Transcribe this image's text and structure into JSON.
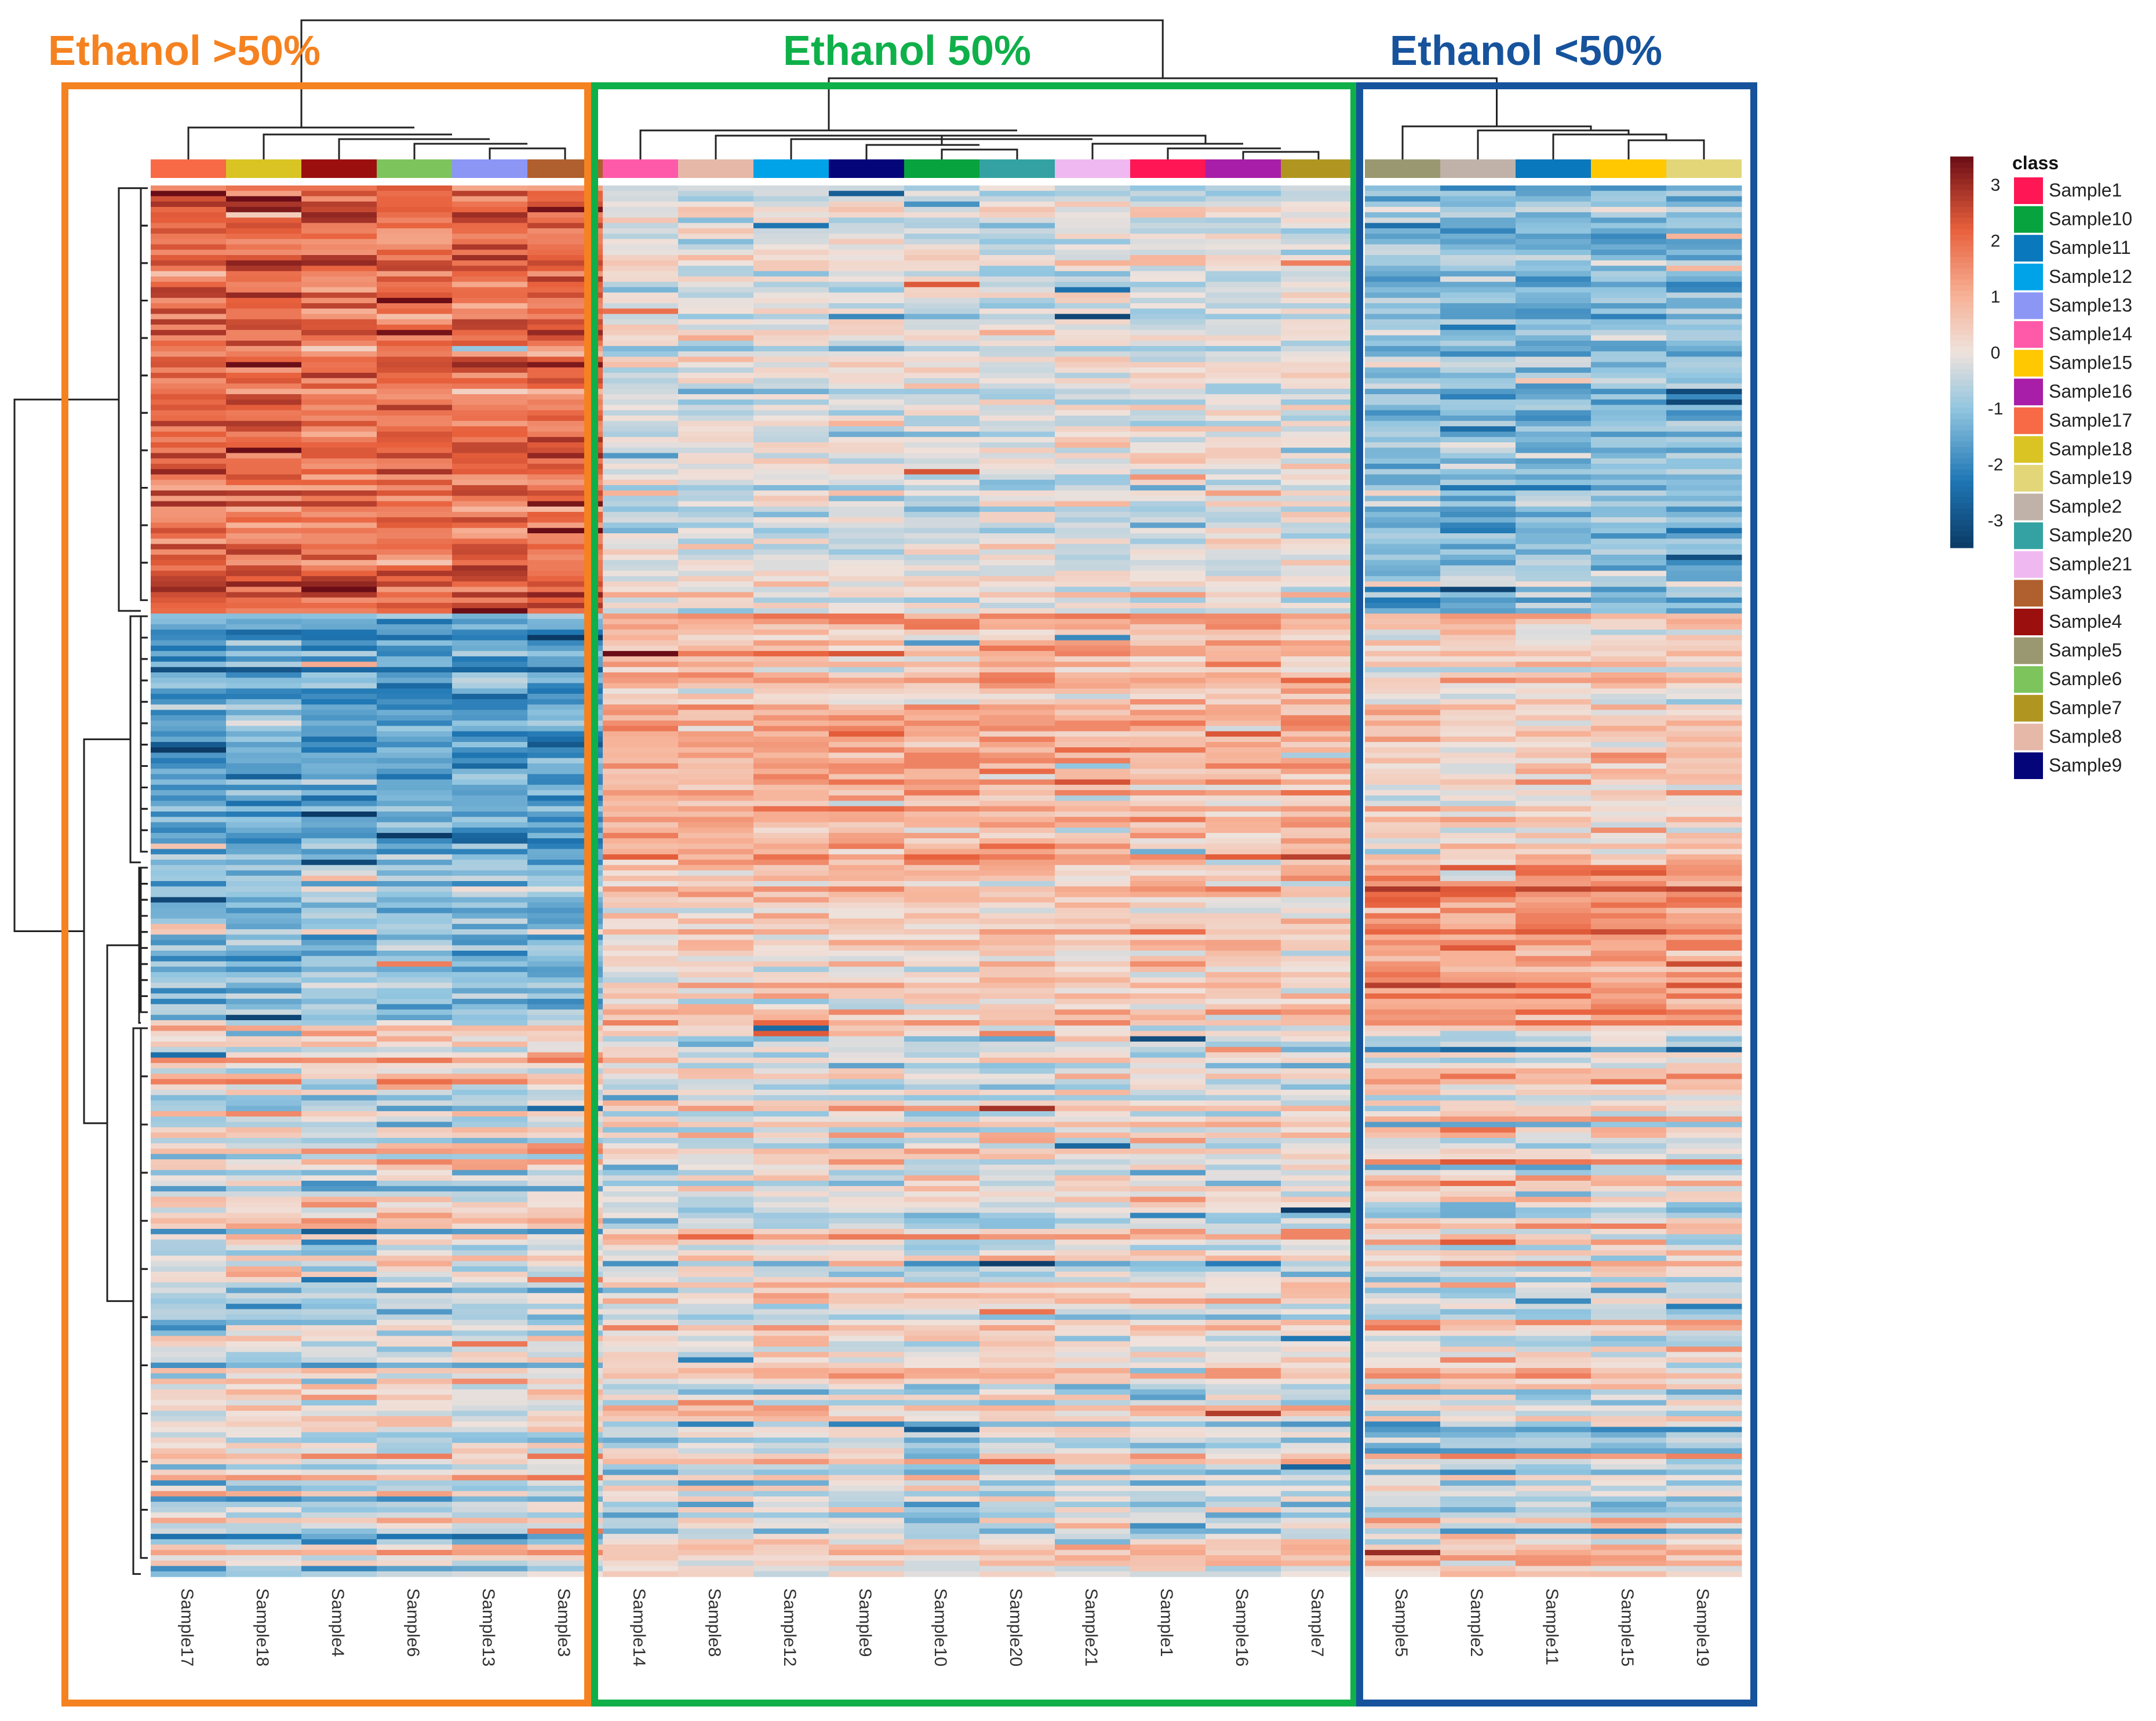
{
  "chart_data": {
    "type": "heatmap",
    "title": "",
    "column_order": [
      "Sample17",
      "Sample18",
      "Sample4",
      "Sample6",
      "Sample13",
      "Sample3",
      "Sample14",
      "Sample8",
      "Sample12",
      "Sample9",
      "Sample10",
      "Sample20",
      "Sample21",
      "Sample1",
      "Sample16",
      "Sample7",
      "Sample5",
      "Sample2",
      "Sample11",
      "Sample15",
      "Sample19"
    ],
    "groups": [
      {
        "label": "Ethanol >50%",
        "color": "#f58220",
        "start": 0,
        "end": 6
      },
      {
        "label": "Ethanol 50%",
        "color": "#0fb04a",
        "start": 6,
        "end": 16
      },
      {
        "label": "Ethanol <50%",
        "color": "#16539c",
        "start": 16,
        "end": 21
      }
    ],
    "row_count": 260,
    "row_clusters": [
      {
        "rows": 80,
        "pattern": [
          2.0,
          -0.2,
          -1.2
        ],
        "note": "high in >50%, mixed in 50%, low in <50%"
      },
      {
        "rows": 47,
        "pattern": [
          -1.6,
          0.9,
          0.4
        ],
        "note": "low in >50%, high in 50%, moderate in <50%"
      },
      {
        "rows": 30,
        "pattern": [
          -1.0,
          0.6,
          1.6
        ],
        "note": "low in >50%, moderate in 50%, high in <50%"
      },
      {
        "rows": 103,
        "pattern": [
          0.0,
          0.0,
          0.0
        ],
        "note": "mixed pattern across groups"
      }
    ],
    "color_scale": {
      "label": "",
      "range": [
        -3.5,
        3.5
      ],
      "ticks": [
        "3",
        "2",
        "1",
        "0",
        "-1",
        "-2",
        "-3"
      ],
      "tick_values": [
        3,
        2,
        1,
        0,
        -1,
        -2,
        -3
      ],
      "stops": [
        {
          "v": -3.5,
          "c": "#0b3a66"
        },
        {
          "v": -2.3,
          "c": "#1f77b4"
        },
        {
          "v": -1.0,
          "c": "#93c6e0"
        },
        {
          "v": 0.0,
          "c": "#efe2dc"
        },
        {
          "v": 1.0,
          "c": "#f7b297"
        },
        {
          "v": 2.2,
          "c": "#e8603c"
        },
        {
          "v": 3.5,
          "c": "#6b0d16"
        }
      ]
    },
    "legend": {
      "title": "class",
      "entries": [
        {
          "label": "Sample1",
          "color": "#ff1654"
        },
        {
          "label": "Sample10",
          "color": "#07a33e"
        },
        {
          "label": "Sample11",
          "color": "#0a78bd"
        },
        {
          "label": "Sample12",
          "color": "#00a2e8"
        },
        {
          "label": "Sample13",
          "color": "#8c96f5"
        },
        {
          "label": "Sample14",
          "color": "#ff5aaa"
        },
        {
          "label": "Sample15",
          "color": "#ffc800"
        },
        {
          "label": "Sample16",
          "color": "#a81ea8"
        },
        {
          "label": "Sample17",
          "color": "#f76a45"
        },
        {
          "label": "Sample18",
          "color": "#d9c424"
        },
        {
          "label": "Sample19",
          "color": "#e2d679"
        },
        {
          "label": "Sample2",
          "color": "#c0b2a9"
        },
        {
          "label": "Sample20",
          "color": "#34a2a2"
        },
        {
          "label": "Sample21",
          "color": "#f0b8f0"
        },
        {
          "label": "Sample3",
          "color": "#b05f2e"
        },
        {
          "label": "Sample4",
          "color": "#9c0f0f"
        },
        {
          "label": "Sample5",
          "color": "#999870"
        },
        {
          "label": "Sample6",
          "color": "#7dc45c"
        },
        {
          "label": "Sample7",
          "color": "#b09520"
        },
        {
          "label": "Sample8",
          "color": "#e6b8a8"
        },
        {
          "label": "Sample9",
          "color": "#05057a"
        }
      ]
    }
  }
}
